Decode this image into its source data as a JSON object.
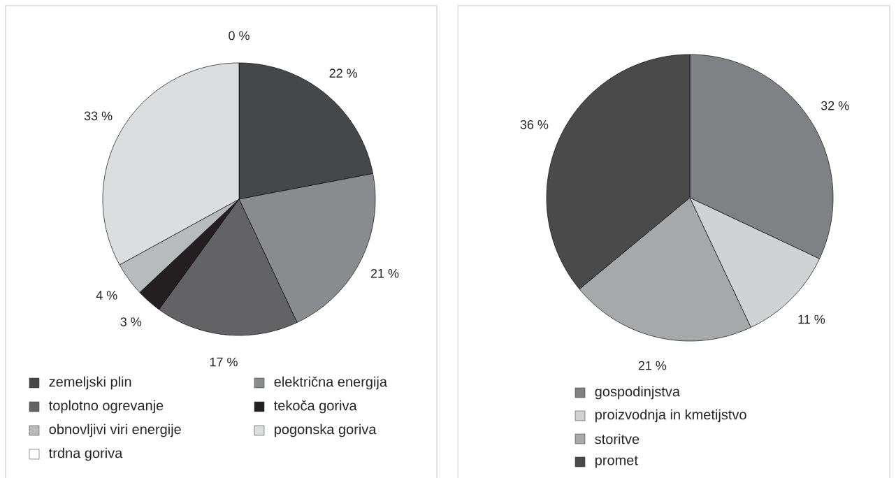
{
  "chart_data": [
    {
      "type": "pie",
      "categories": [
        "zemeljski plin",
        "električna energija",
        "toplotno ogrevanje",
        "tekoča goriva",
        "obnovljivi viri energije",
        "pogonska goriva",
        "trdna goriva"
      ],
      "values": [
        22,
        21,
        17,
        3,
        4,
        33,
        0
      ],
      "colors": [
        "#464749",
        "#8a8b8e",
        "#636365",
        "#231f20",
        "#b9babc",
        "#dcdddf",
        "#ffffff"
      ],
      "value_labels": [
        "22 %",
        "21 %",
        "17 %",
        "3 %",
        "4 %",
        "33 %",
        "0 %"
      ],
      "legend": "bottom"
    },
    {
      "type": "pie",
      "categories": [
        "gospodinjstva",
        "proizvodnja in kmetijstvo",
        "storitve",
        "promet"
      ],
      "values": [
        32,
        11,
        21,
        36
      ],
      "colors": [
        "#808184",
        "#d1d2d4",
        "#a7a8aa",
        "#4a4a4b"
      ],
      "value_labels": [
        "32 %",
        "11 %",
        "21 %",
        "36 %"
      ],
      "legend": "bottom"
    }
  ]
}
